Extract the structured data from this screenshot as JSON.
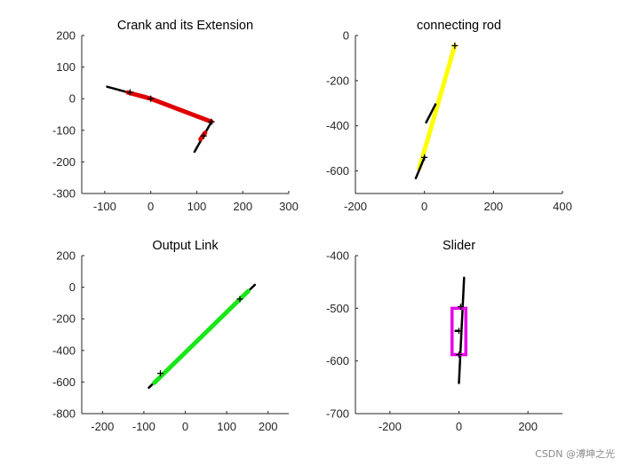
{
  "colors": {
    "axis": "#262626",
    "black": "#000000",
    "red": "#e00000",
    "yellow": "#ffff00",
    "green": "#19e619",
    "magenta": "#e600e6",
    "watermark": "#8a8a8a"
  },
  "watermark": "CSDN @溥坤之光",
  "chart_data": [
    {
      "type": "line",
      "title": "Crank and its Extension",
      "xlim": [
        -150,
        300
      ],
      "ylim": [
        -300,
        200
      ],
      "xticks": [
        -100,
        0,
        100,
        200,
        300
      ],
      "yticks": [
        -300,
        -200,
        -100,
        0,
        100,
        200
      ],
      "series": [
        {
          "name": "extension",
          "color": "black",
          "width": 2.5,
          "x": [
            -95,
            0,
            132
          ],
          "y": [
            38,
            0,
            -73
          ]
        },
        {
          "name": "crank",
          "color": "red",
          "width": 5,
          "x": [
            -50,
            0,
            132
          ],
          "y": [
            20,
            0,
            -73
          ]
        },
        {
          "name": "link",
          "color": "black",
          "width": 2.5,
          "x": [
            95,
            132
          ],
          "y": [
            -168,
            -73
          ]
        },
        {
          "name": "red-link-part",
          "color": "red",
          "width": 5,
          "x": [
            108,
            118
          ],
          "y": [
            -128,
            -108
          ]
        }
      ],
      "markers": [
        {
          "x": 0,
          "y": 0
        },
        {
          "x": 132,
          "y": -73
        },
        {
          "x": -45,
          "y": 20
        },
        {
          "x": 115,
          "y": -118
        }
      ]
    },
    {
      "type": "line",
      "title": "connecting rod",
      "xlim": [
        -200,
        400
      ],
      "ylim": [
        -700,
        0
      ],
      "xticks": [
        -200,
        0,
        200,
        400
      ],
      "yticks": [
        -600,
        -400,
        -200,
        0
      ],
      "series": [
        {
          "name": "rod",
          "color": "yellow",
          "width": 5,
          "x": [
            -15,
            88
          ],
          "y": [
            -590,
            -45
          ]
        },
        {
          "name": "rod-bottom",
          "color": "black",
          "width": 2.5,
          "x": [
            -25,
            0
          ],
          "y": [
            -632,
            -540
          ]
        },
        {
          "name": "rod-mid",
          "color": "black",
          "width": 2.5,
          "x": [
            5,
            32
          ],
          "y": [
            -385,
            -305
          ]
        }
      ],
      "markers": [
        {
          "x": 88,
          "y": -45
        },
        {
          "x": 0,
          "y": -540
        }
      ]
    },
    {
      "type": "line",
      "title": "Output Link",
      "xlim": [
        -250,
        250
      ],
      "ylim": [
        -800,
        200
      ],
      "xticks": [
        -200,
        -100,
        0,
        100,
        200
      ],
      "yticks": [
        -800,
        -600,
        -400,
        -200,
        0,
        200
      ],
      "series": [
        {
          "name": "output-link-ext",
          "color": "black",
          "width": 2.5,
          "x": [
            -88,
            168
          ],
          "y": [
            -636,
            15
          ]
        },
        {
          "name": "output-link",
          "color": "green",
          "width": 5,
          "x": [
            -75,
            152
          ],
          "y": [
            -605,
            -25
          ]
        }
      ],
      "markers": [
        {
          "x": -60,
          "y": -545
        },
        {
          "x": 132,
          "y": -75
        }
      ]
    },
    {
      "type": "line",
      "title": "Slider",
      "xlim": [
        -300,
        300
      ],
      "ylim": [
        -700,
        -400
      ],
      "xticks": [
        -200,
        0,
        200
      ],
      "yticks": [
        -700,
        -600,
        -500,
        -400
      ],
      "series": [
        {
          "name": "slider-rod",
          "color": "black",
          "width": 2.5,
          "x": [
            0,
            15
          ],
          "y": [
            -642,
            -442
          ]
        },
        {
          "name": "slider-stub",
          "color": "black",
          "width": 2.5,
          "x": [
            -10,
            0
          ],
          "y": [
            -543,
            -543
          ]
        }
      ],
      "rectangles": [
        {
          "name": "slider-block",
          "color": "magenta",
          "x0": -20,
          "x1": 20,
          "y0": -588,
          "y1": -500
        }
      ],
      "markers": [
        {
          "x": 0,
          "y": -588
        },
        {
          "x": 0,
          "y": -543
        },
        {
          "x": 5,
          "y": -497
        }
      ]
    }
  ]
}
